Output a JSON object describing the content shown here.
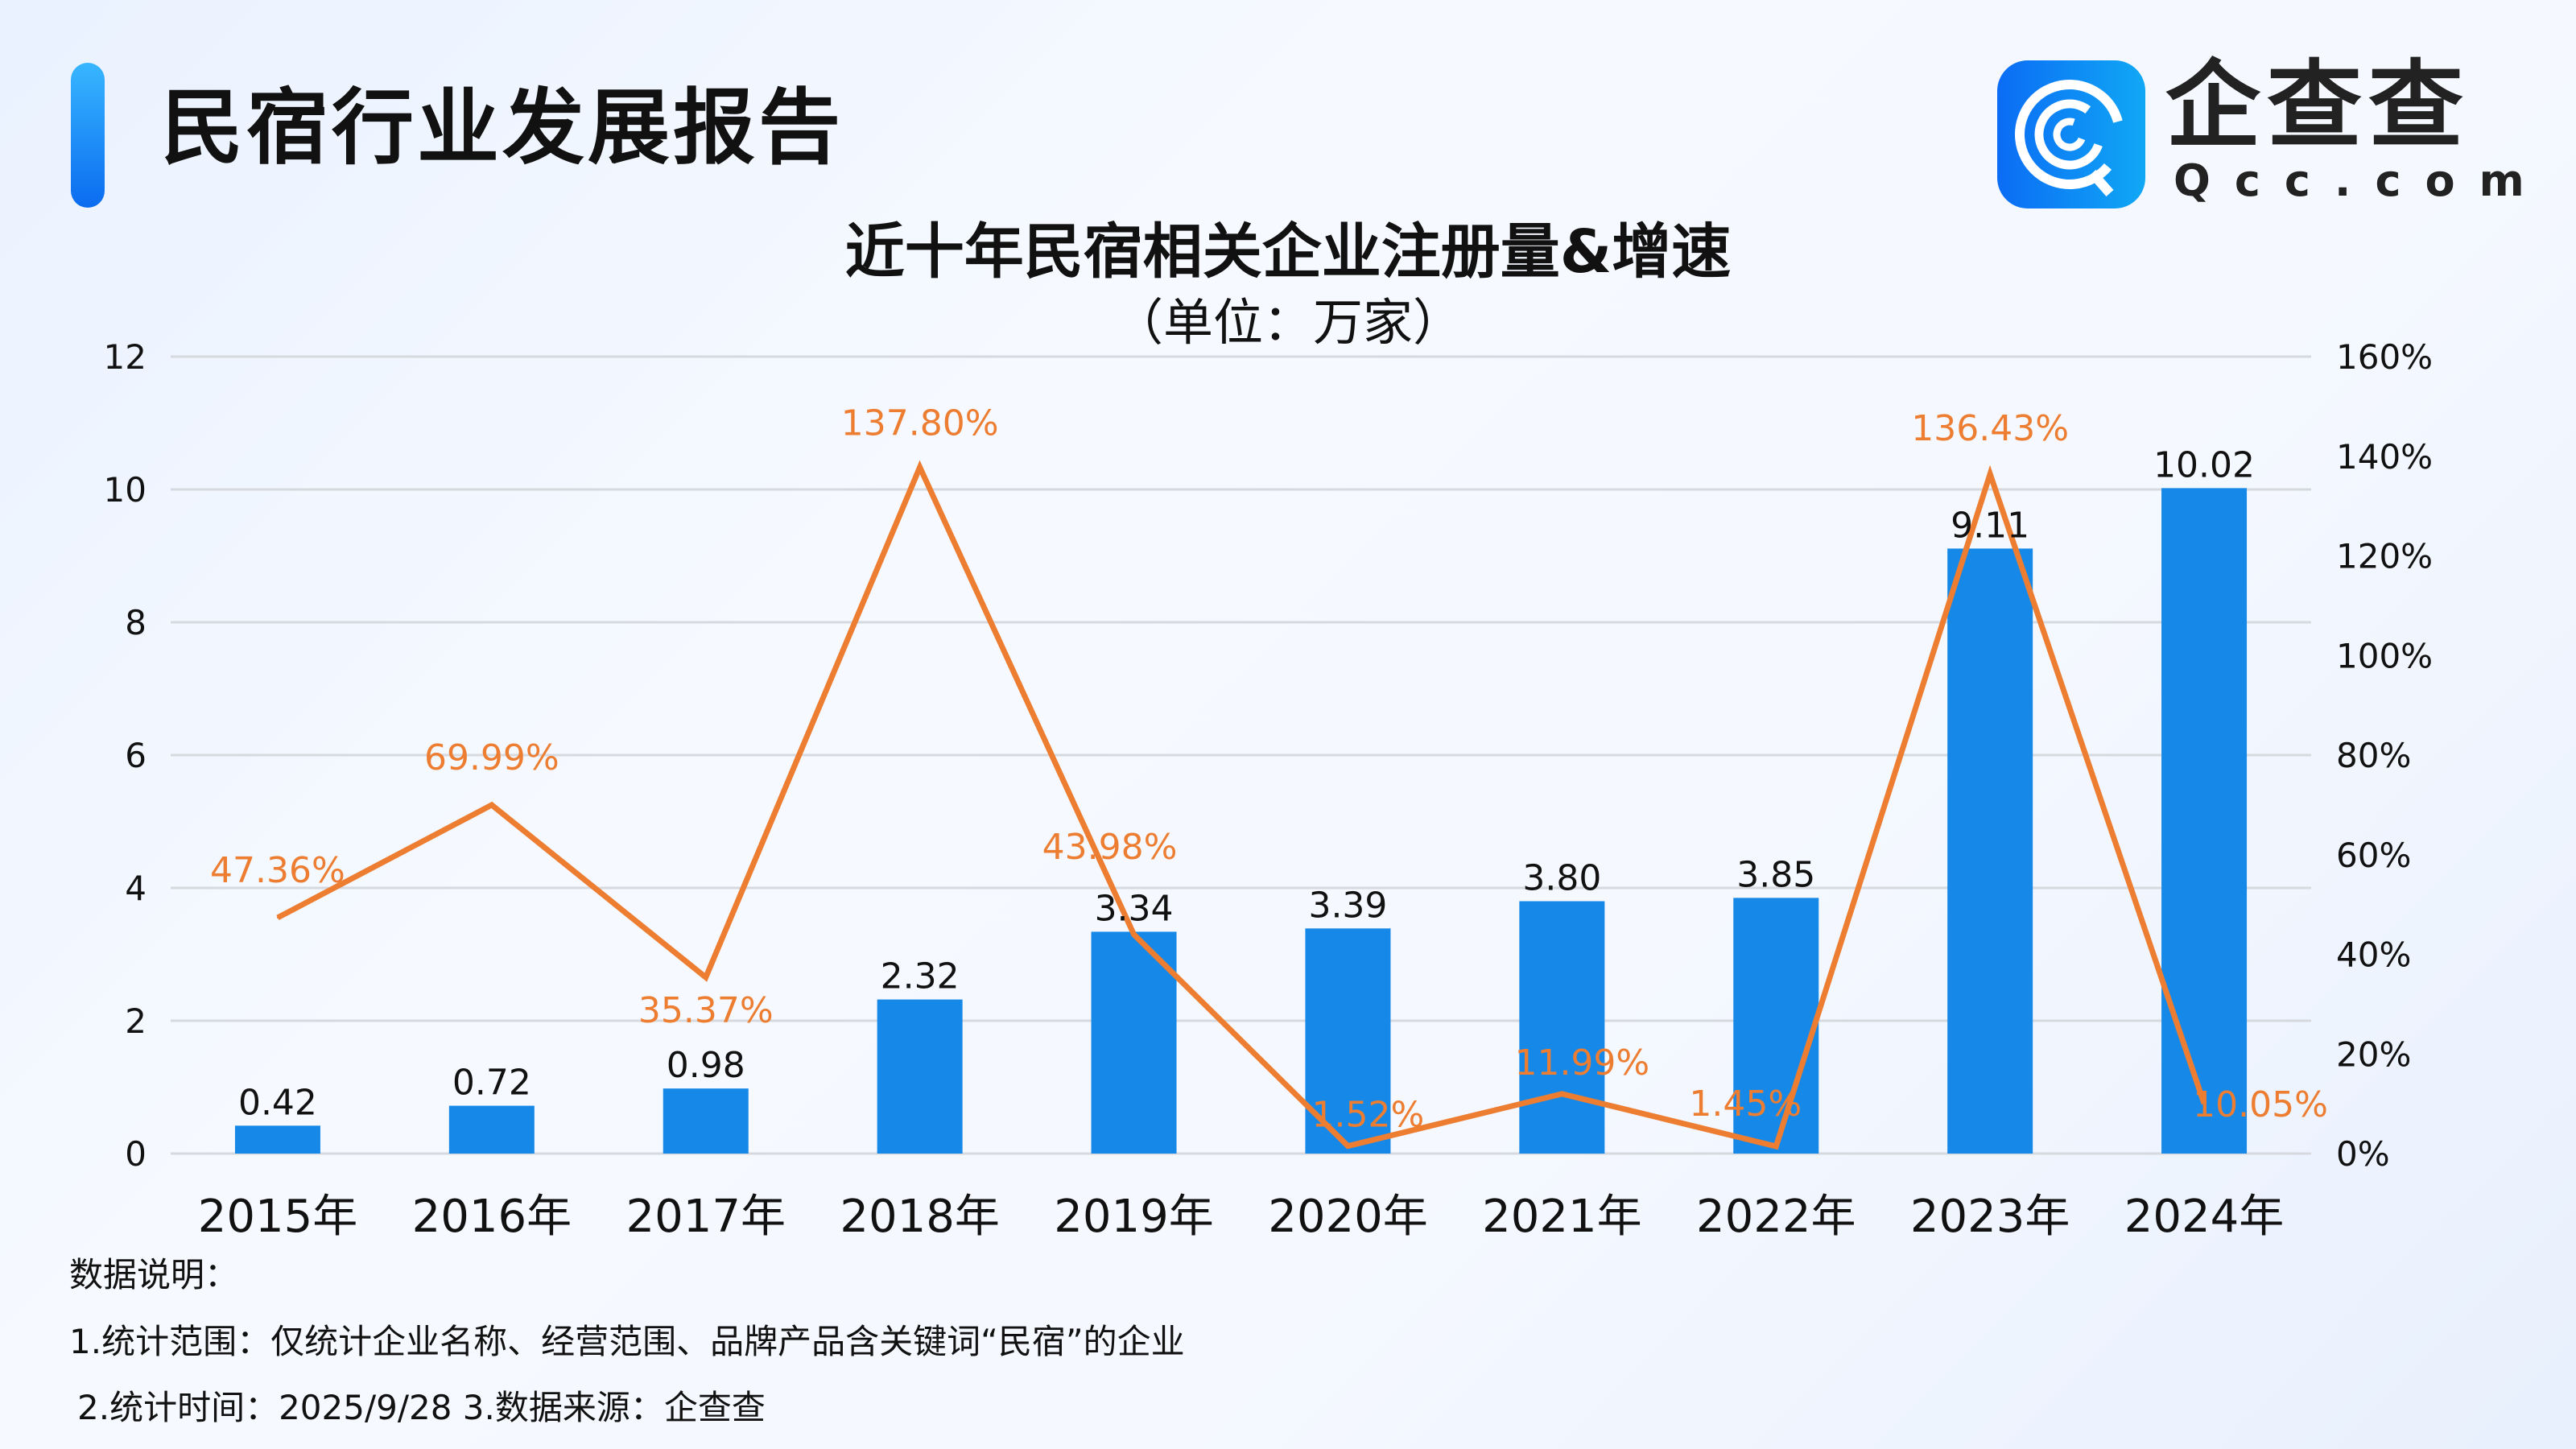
{
  "header": {
    "title": "民宿行业发展报告"
  },
  "logo": {
    "name": "企查查",
    "domain": "Qcc.com"
  },
  "chart_data": {
    "type": "bar+line",
    "title": "近十年民宿相关企业注册量&增速",
    "subtitle": "（单位：万家）",
    "categories": [
      "2015年",
      "2016年",
      "2017年",
      "2018年",
      "2019年",
      "2020年",
      "2021年",
      "2022年",
      "2023年",
      "2024年"
    ],
    "series": [
      {
        "type": "bar",
        "axis": "left",
        "color": "#1689E8",
        "values": [
          0.42,
          0.72,
          0.98,
          2.32,
          3.34,
          3.39,
          3.8,
          3.85,
          9.11,
          10.02
        ],
        "labels": [
          "0.42",
          "0.72",
          "0.98",
          "2.32",
          "3.34",
          "3.39",
          "3.80",
          "3.85",
          "9.11",
          "10.02"
        ]
      },
      {
        "type": "line",
        "axis": "right",
        "color": "#ED7D31",
        "values": [
          47.36,
          69.99,
          35.37,
          137.8,
          43.98,
          1.52,
          11.99,
          1.45,
          136.43,
          10.05
        ],
        "labels": [
          "47.36%",
          "69.99%",
          "35.37%",
          "137.80%",
          "43.98%",
          "1.52%",
          "11.99%",
          "1.45%",
          "136.43%",
          "10.05%"
        ]
      }
    ],
    "left_axis": {
      "ylim": [
        0,
        12
      ],
      "ticks": [
        "0",
        "2",
        "4",
        "6",
        "8",
        "10",
        "12"
      ]
    },
    "right_axis": {
      "ylim": [
        0,
        160
      ],
      "ticks": [
        "0%",
        "20%",
        "40%",
        "60%",
        "80%",
        "100%",
        "120%",
        "140%",
        "160%"
      ]
    },
    "grid": true
  },
  "footer": {
    "heading": "数据说明：",
    "line1": "1.统计范围：仅统计企业名称、经营范围、品牌产品含关键词“民宿”的企业",
    "line2": "2.统计时间：2025/9/28  3.数据来源：企查查"
  }
}
